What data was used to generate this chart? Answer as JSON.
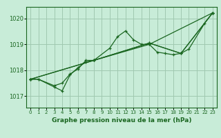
{
  "title": "Graphe pression niveau de la mer (hPa)",
  "background_color": "#c8ecd8",
  "grid_color": "#a0c8b0",
  "line_color": "#1a6620",
  "x_ticks": [
    0,
    1,
    2,
    3,
    4,
    5,
    6,
    7,
    8,
    9,
    10,
    11,
    12,
    13,
    14,
    15,
    16,
    17,
    18,
    19,
    20,
    21,
    22,
    23
  ],
  "y_ticks": [
    1017,
    1018,
    1019,
    1020
  ],
  "ylim": [
    1016.55,
    1020.45
  ],
  "xlim": [
    -0.5,
    23.5
  ],
  "series_exact": [
    {
      "x": [
        0,
        1,
        3,
        4,
        5,
        6,
        7,
        8,
        10,
        11,
        12,
        13,
        14,
        15,
        23
      ],
      "y": [
        1017.65,
        1017.65,
        1017.4,
        1017.5,
        1017.85,
        1018.05,
        1018.38,
        1018.38,
        1018.85,
        1019.3,
        1019.52,
        1019.18,
        1019.0,
        1019.0,
        1020.22
      ]
    },
    {
      "x": [
        0,
        1,
        3,
        4,
        5,
        6,
        7,
        8,
        15,
        16,
        17,
        18,
        19,
        20,
        22,
        23
      ],
      "y": [
        1017.65,
        1017.65,
        1017.35,
        1017.2,
        1017.82,
        1018.1,
        1018.32,
        1018.38,
        1019.0,
        1018.7,
        1018.65,
        1018.6,
        1018.65,
        1018.82,
        1019.82,
        1020.22
      ]
    },
    {
      "x": [
        0,
        8,
        15,
        19,
        23
      ],
      "y": [
        1017.65,
        1018.38,
        1019.05,
        1018.65,
        1020.22
      ]
    },
    {
      "x": [
        0,
        8,
        15,
        19,
        23
      ],
      "y": [
        1017.65,
        1018.38,
        1019.05,
        1018.65,
        1020.22
      ]
    }
  ],
  "figsize": [
    3.2,
    2.0
  ],
  "dpi": 100
}
